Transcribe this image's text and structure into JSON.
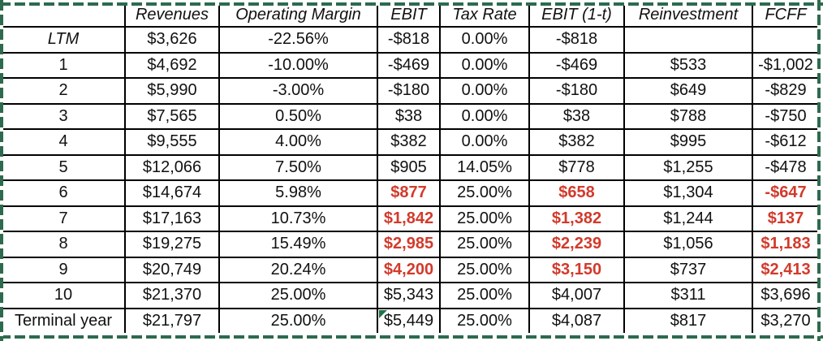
{
  "table": {
    "columns": [
      "",
      "Revenues",
      "Operating Margin",
      "EBIT",
      "Tax Rate",
      "EBIT (1-t)",
      "Reinvestment",
      "FCFF"
    ],
    "rows": [
      {
        "label": "LTM",
        "italic": true,
        "cells": [
          "$3,626",
          "-22.56%",
          "-$818",
          "0.00%",
          "-$818",
          "",
          ""
        ],
        "red": []
      },
      {
        "label": "1",
        "cells": [
          "$4,692",
          "-10.00%",
          "-$469",
          "0.00%",
          "-$469",
          "$533",
          "-$1,002"
        ],
        "red": []
      },
      {
        "label": "2",
        "cells": [
          "$5,990",
          "-3.00%",
          "-$180",
          "0.00%",
          "-$180",
          "$649",
          "-$829"
        ],
        "red": []
      },
      {
        "label": "3",
        "cells": [
          "$7,565",
          "0.50%",
          "$38",
          "0.00%",
          "$38",
          "$788",
          "-$750"
        ],
        "red": []
      },
      {
        "label": "4",
        "cells": [
          "$9,555",
          "4.00%",
          "$382",
          "0.00%",
          "$382",
          "$995",
          "-$612"
        ],
        "red": []
      },
      {
        "label": "5",
        "cells": [
          "$12,066",
          "7.50%",
          "$905",
          "14.05%",
          "$778",
          "$1,255",
          "-$478"
        ],
        "red": []
      },
      {
        "label": "6",
        "cells": [
          "$14,674",
          "5.98%",
          "$877",
          "25.00%",
          "$658",
          "$1,304",
          "-$647"
        ],
        "red": [
          2,
          4,
          6
        ]
      },
      {
        "label": "7",
        "cells": [
          "$17,163",
          "10.73%",
          "$1,842",
          "25.00%",
          "$1,382",
          "$1,244",
          "$137"
        ],
        "red": [
          2,
          4,
          6
        ]
      },
      {
        "label": "8",
        "cells": [
          "$19,275",
          "15.49%",
          "$2,985",
          "25.00%",
          "$2,239",
          "$1,056",
          "$1,183"
        ],
        "red": [
          2,
          4,
          6
        ]
      },
      {
        "label": "9",
        "cells": [
          "$20,749",
          "20.24%",
          "$4,200",
          "25.00%",
          "$3,150",
          "$737",
          "$2,413"
        ],
        "red": [
          2,
          4,
          6
        ]
      },
      {
        "label": "10",
        "cells": [
          "$21,370",
          "25.00%",
          "$5,343",
          "25.00%",
          "$4,007",
          "$311",
          "$3,696"
        ],
        "red": []
      },
      {
        "label": "Terminal year",
        "cells": [
          "$21,797",
          "25.00%",
          "$5,449",
          "25.00%",
          "$4,087",
          "$817",
          "$3,270"
        ],
        "red": [],
        "flag": 2
      }
    ]
  },
  "icons": {
    "error_flag": "green-triangle-cell-flag-icon",
    "selection_border": "excel-copy-marquee-dashed-border"
  },
  "colors": {
    "negative_red_text": "#d23a2b",
    "marquee_green": "#2d6a4e",
    "flag_triangle_green": "#217346",
    "gridline_black": "#000000"
  }
}
